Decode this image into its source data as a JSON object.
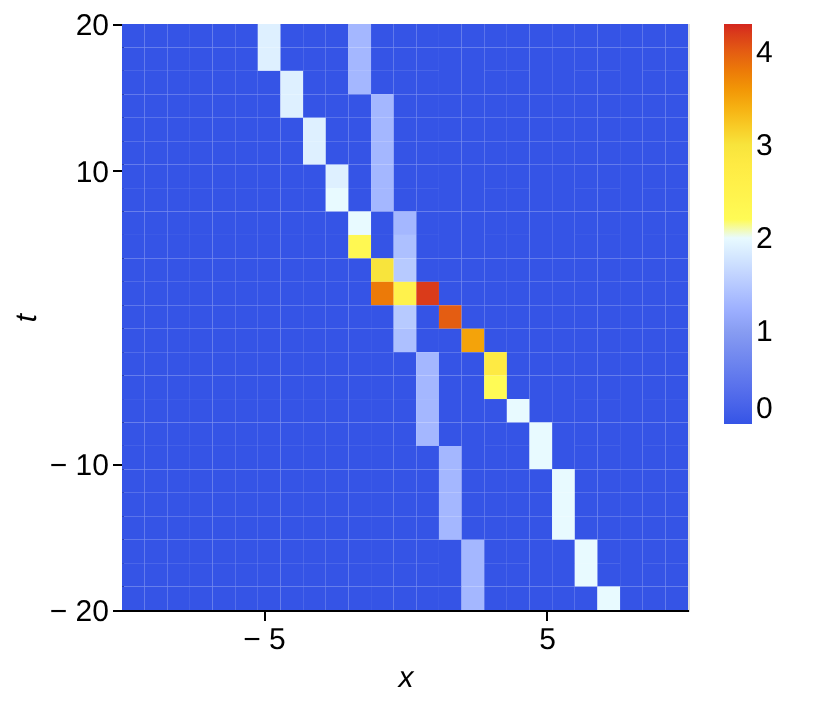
{
  "chart_data": {
    "type": "heatmap",
    "xlabel": "x",
    "ylabel": "t",
    "x": [
      -9.6,
      -8.8,
      -8.0,
      -7.2,
      -6.4,
      -5.6,
      -4.8,
      -4.0,
      -3.2,
      -2.4,
      -1.6,
      -0.8,
      0,
      0.8,
      1.6,
      2.4,
      3.2,
      4.0,
      4.8,
      5.6,
      6.4,
      7.2,
      8.0,
      8.8,
      9.6
    ],
    "y": [
      19.2,
      17.6,
      16,
      14.4,
      12.8,
      11.2,
      9.6,
      8,
      6.4,
      4.8,
      3.2,
      1.6,
      0,
      -1.6,
      -3.2,
      -4.8,
      -6.4,
      -8,
      -9.6,
      -11.2,
      -12.8,
      -14.4,
      -16,
      -17.6,
      -19.2
    ],
    "xlim": [
      -10,
      10
    ],
    "ylim": [
      -20,
      20
    ],
    "xticks": [
      {
        "value": -5,
        "label": "− 5"
      },
      5
    ],
    "yticks": [
      {
        "value": -20,
        "label": "− 20"
      },
      {
        "value": -10,
        "label": "− 10"
      },
      10,
      20
    ],
    "clim": [
      0,
      4.3
    ],
    "cticks": [
      0,
      1,
      2,
      3,
      4
    ],
    "grid": false,
    "cells": [
      [
        0,
        0,
        0,
        0,
        0,
        0,
        1.9,
        0,
        0,
        0,
        1.3,
        0,
        0,
        0,
        0,
        0,
        0,
        0,
        0,
        0,
        0,
        0,
        0,
        0,
        0
      ],
      [
        0,
        0,
        0,
        0,
        0,
        0,
        1.9,
        0,
        0,
        0,
        1.3,
        0,
        0,
        0,
        0,
        0,
        0,
        0,
        0,
        0,
        0,
        0,
        0,
        0,
        0
      ],
      [
        0,
        0,
        0,
        0,
        0,
        0,
        0,
        1.9,
        0,
        0,
        1.3,
        0,
        0,
        0,
        0,
        0,
        0,
        0,
        0,
        0,
        0,
        0,
        0,
        0,
        0
      ],
      [
        0,
        0,
        0,
        0,
        0,
        0,
        0,
        1.9,
        0,
        0,
        0,
        1.3,
        0,
        0,
        0,
        0,
        0,
        0,
        0,
        0,
        0,
        0,
        0,
        0,
        0
      ],
      [
        0,
        0,
        0,
        0,
        0,
        0,
        0,
        0,
        1.9,
        0,
        0,
        1.3,
        0,
        0,
        0,
        0,
        0,
        0,
        0,
        0,
        0,
        0,
        0,
        0,
        0
      ],
      [
        0,
        0,
        0,
        0,
        0,
        0,
        0,
        0,
        1.9,
        0,
        0,
        1.3,
        0,
        0,
        0,
        0,
        0,
        0,
        0,
        0,
        0,
        0,
        0,
        0,
        0
      ],
      [
        0,
        0,
        0,
        0,
        0,
        0,
        0,
        0,
        0,
        1.9,
        0,
        1.3,
        0,
        0,
        0,
        0,
        0,
        0,
        0,
        0,
        0,
        0,
        0,
        0,
        0
      ],
      [
        0,
        0,
        0,
        0,
        0,
        0,
        0,
        0,
        0,
        2,
        0,
        1.3,
        0,
        0,
        0,
        0,
        0,
        0,
        0,
        0,
        0,
        0,
        0,
        0,
        0
      ],
      [
        0,
        0,
        0,
        0,
        0,
        0,
        0,
        0,
        0,
        0,
        2,
        0,
        1.3,
        0,
        0,
        0,
        0,
        0,
        0,
        0,
        0,
        0,
        0,
        0,
        0
      ],
      [
        0,
        0,
        0,
        0,
        0,
        0,
        0,
        0,
        0,
        0,
        2.3,
        0,
        1.4,
        0,
        0,
        0,
        0,
        0,
        0,
        0,
        0,
        0,
        0,
        0,
        0
      ],
      [
        0,
        0,
        0,
        0,
        0,
        0,
        0,
        0,
        0,
        0,
        0,
        3,
        1.5,
        0,
        0,
        0,
        0,
        0,
        0,
        0,
        0,
        0,
        0,
        0,
        0
      ],
      [
        0,
        0,
        0,
        0,
        0,
        0,
        0,
        0,
        0,
        0,
        0,
        3.8,
        2.5,
        4.2,
        0,
        0,
        0,
        0,
        0,
        0,
        0,
        0,
        0,
        0,
        0
      ],
      [
        0,
        0,
        0,
        0,
        0,
        0,
        0,
        0,
        0,
        0,
        0,
        0,
        1.5,
        0,
        4,
        0,
        0,
        0,
        0,
        0,
        0,
        0,
        0,
        0,
        0
      ],
      [
        0,
        0,
        0,
        0,
        0,
        0,
        0,
        0,
        0,
        0,
        0,
        0,
        1.4,
        0,
        0,
        3.5,
        0,
        0,
        0,
        0,
        0,
        0,
        0,
        0,
        0
      ],
      [
        0,
        0,
        0,
        0,
        0,
        0,
        0,
        0,
        0,
        0,
        0,
        0,
        0,
        1.3,
        0,
        0,
        2.8,
        0,
        0,
        0,
        0,
        0,
        0,
        0,
        0
      ],
      [
        0,
        0,
        0,
        0,
        0,
        0,
        0,
        0,
        0,
        0,
        0,
        0,
        0,
        1.3,
        0,
        0,
        2.2,
        0,
        0,
        0,
        0,
        0,
        0,
        0,
        0
      ],
      [
        0,
        0,
        0,
        0,
        0,
        0,
        0,
        0,
        0,
        0,
        0,
        0,
        0,
        1.3,
        0,
        0,
        0,
        2,
        0,
        0,
        0,
        0,
        0,
        0,
        0
      ],
      [
        0,
        0,
        0,
        0,
        0,
        0,
        0,
        0,
        0,
        0,
        0,
        0,
        0,
        1.3,
        0,
        0,
        0,
        0,
        2,
        0,
        0,
        0,
        0,
        0,
        0
      ],
      [
        0,
        0,
        0,
        0,
        0,
        0,
        0,
        0,
        0,
        0,
        0,
        0,
        0,
        0,
        1.3,
        0,
        0,
        0,
        2,
        0,
        0,
        0,
        0,
        0,
        0
      ],
      [
        0,
        0,
        0,
        0,
        0,
        0,
        0,
        0,
        0,
        0,
        0,
        0,
        0,
        0,
        1.3,
        0,
        0,
        0,
        0,
        2,
        0,
        0,
        0,
        0,
        0
      ],
      [
        0,
        0,
        0,
        0,
        0,
        0,
        0,
        0,
        0,
        0,
        0,
        0,
        0,
        0,
        1.3,
        0,
        0,
        0,
        0,
        2,
        0,
        0,
        0,
        0,
        0
      ],
      [
        0,
        0,
        0,
        0,
        0,
        0,
        0,
        0,
        0,
        0,
        0,
        0,
        0,
        0,
        1.3,
        0,
        0,
        0,
        0,
        2,
        0,
        0,
        0,
        0,
        0
      ],
      [
        0,
        0,
        0,
        0,
        0,
        0,
        0,
        0,
        0,
        0,
        0,
        0,
        0,
        0,
        0,
        1.3,
        0,
        0,
        0,
        0,
        2,
        0,
        0,
        0,
        0
      ],
      [
        0,
        0,
        0,
        0,
        0,
        0,
        0,
        0,
        0,
        0,
        0,
        0,
        0,
        0,
        0,
        1.3,
        0,
        0,
        0,
        0,
        2,
        0,
        0,
        0,
        0
      ],
      [
        0,
        0,
        0,
        0,
        0,
        0,
        0,
        0,
        0,
        0,
        0,
        0,
        0,
        0,
        0,
        1.3,
        0,
        0,
        0,
        0,
        0,
        2,
        0,
        0,
        0
      ]
    ]
  }
}
